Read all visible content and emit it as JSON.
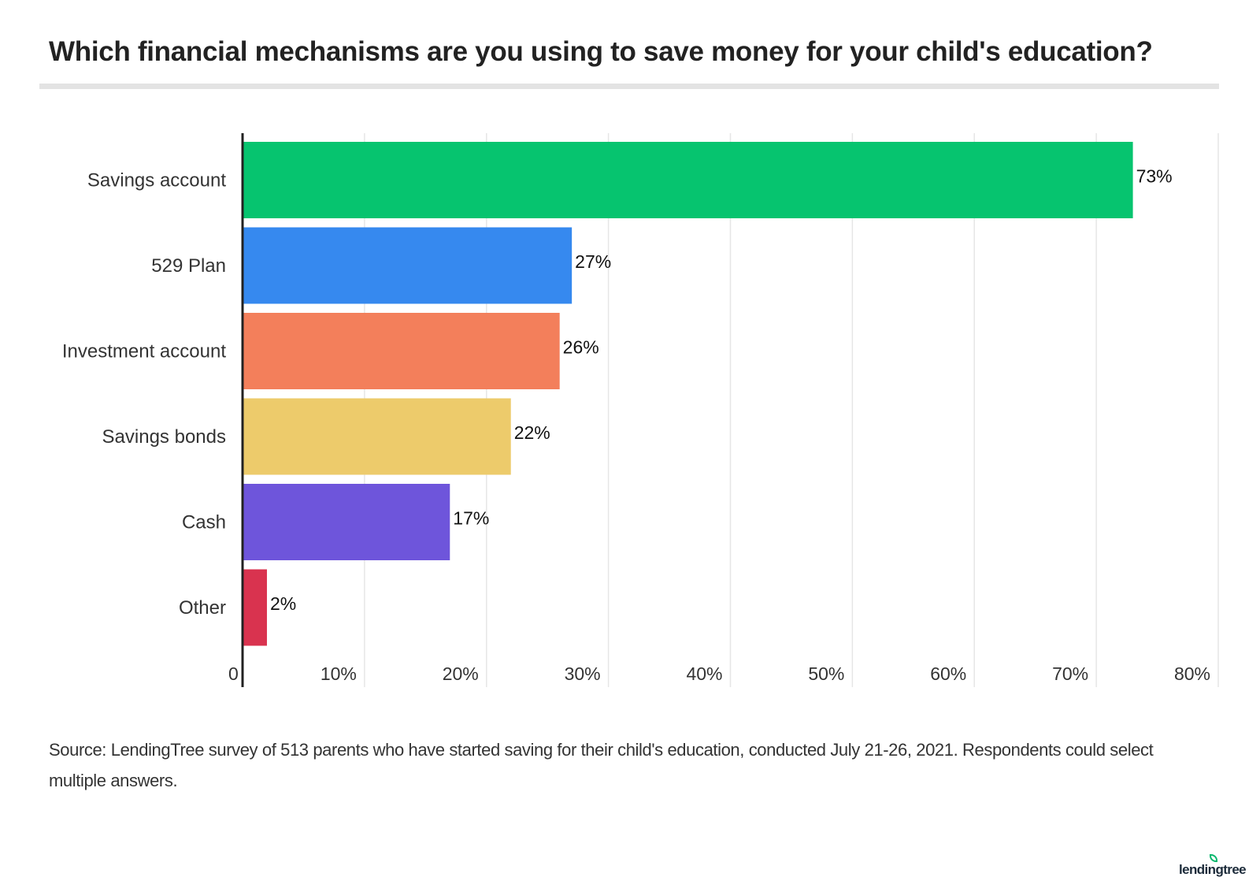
{
  "chart_data": {
    "type": "bar",
    "orientation": "horizontal",
    "title": "Which financial mechanisms are you using to save money for your child's education?",
    "categories": [
      "Savings account",
      "529 Plan",
      "Investment account",
      "Savings bonds",
      "Cash",
      "Other"
    ],
    "values": [
      73,
      27,
      26,
      22,
      17,
      2
    ],
    "data_labels": [
      "73%",
      "27%",
      "26%",
      "22%",
      "17%",
      "2%"
    ],
    "colors": [
      "#06c46f",
      "#3689ef",
      "#f37f5b",
      "#edcb6b",
      "#6e55db",
      "#d9334f"
    ],
    "xlim": [
      0,
      80
    ],
    "xticks": [
      0,
      10,
      20,
      30,
      40,
      50,
      60,
      70,
      80
    ],
    "xtick_labels": [
      "0",
      "10%",
      "20%",
      "30%",
      "40%",
      "50%",
      "60%",
      "70%",
      "80%"
    ],
    "xlabel": "",
    "ylabel": "",
    "grid": "vertical"
  },
  "source": "Source: LendingTree survey of 513 parents who have started saving for their child's education, conducted July 21-26, 2021. Respondents could select multiple answers.",
  "logo": "lendingtree"
}
